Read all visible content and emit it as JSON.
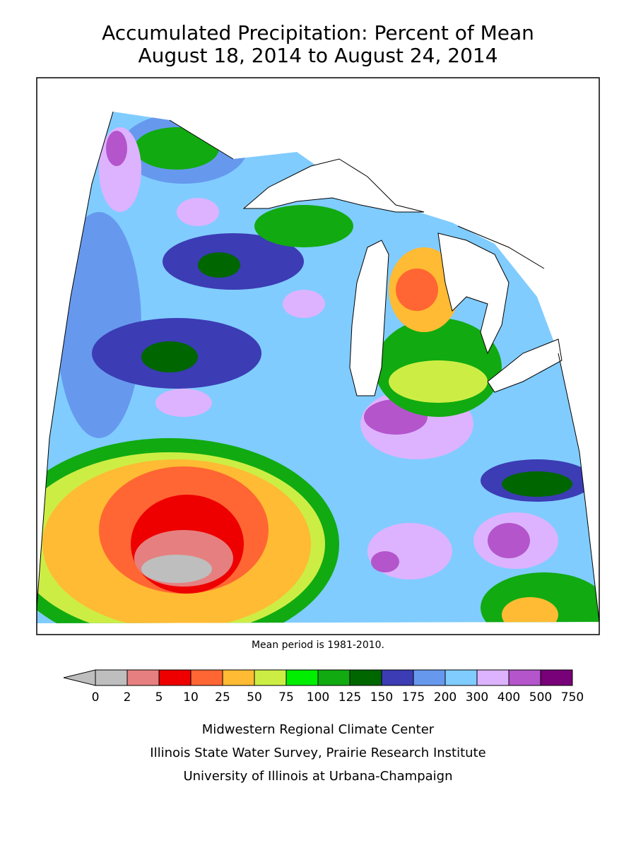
{
  "title": [
    "Accumulated Precipitation: Percent of Mean",
    "August 18, 2014 to August 24, 2014"
  ],
  "note": "Mean period is 1981-2010.",
  "legend": {
    "levels": [
      0,
      2,
      5,
      10,
      25,
      50,
      75,
      100,
      125,
      150,
      175,
      200,
      300,
      400,
      500,
      750
    ],
    "colors": [
      "#bebebe",
      "#e68080",
      "#ee0000",
      "#ff6633",
      "#ffbb33",
      "#ccee44",
      "#00ee00",
      "#11aa11",
      "#006600",
      "#3c3cb4",
      "#6699ee",
      "#80ccff",
      "#ddb3ff",
      "#b455cc",
      "#780078"
    ],
    "below_color": "#bebebe"
  },
  "credits": [
    "Midwestern Regional Climate Center",
    "Illinois State Water Survey, Prairie Research Institute",
    "University of Illinois at Urbana-Champaign"
  ]
}
